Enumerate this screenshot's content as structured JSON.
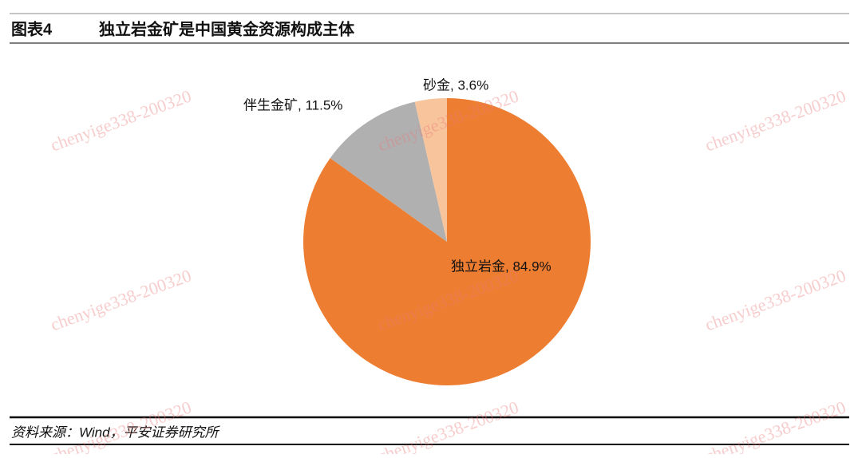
{
  "header": {
    "label": "图表4",
    "title": "独立岩金矿是中国黄金资源构成主体"
  },
  "chart_data": {
    "type": "pie",
    "values": [
      84.9,
      11.5,
      3.6
    ],
    "value_labels": [
      "独立岩金, 84.9%",
      "伴生金矿, 11.5%",
      "砂金, 3.6%"
    ],
    "colors": [
      "#ED7D31",
      "#B0B0B0",
      "#F8C49C"
    ]
  },
  "source": "资料来源：Wind，平安证券研究所",
  "watermark": "chenyige338-200320"
}
